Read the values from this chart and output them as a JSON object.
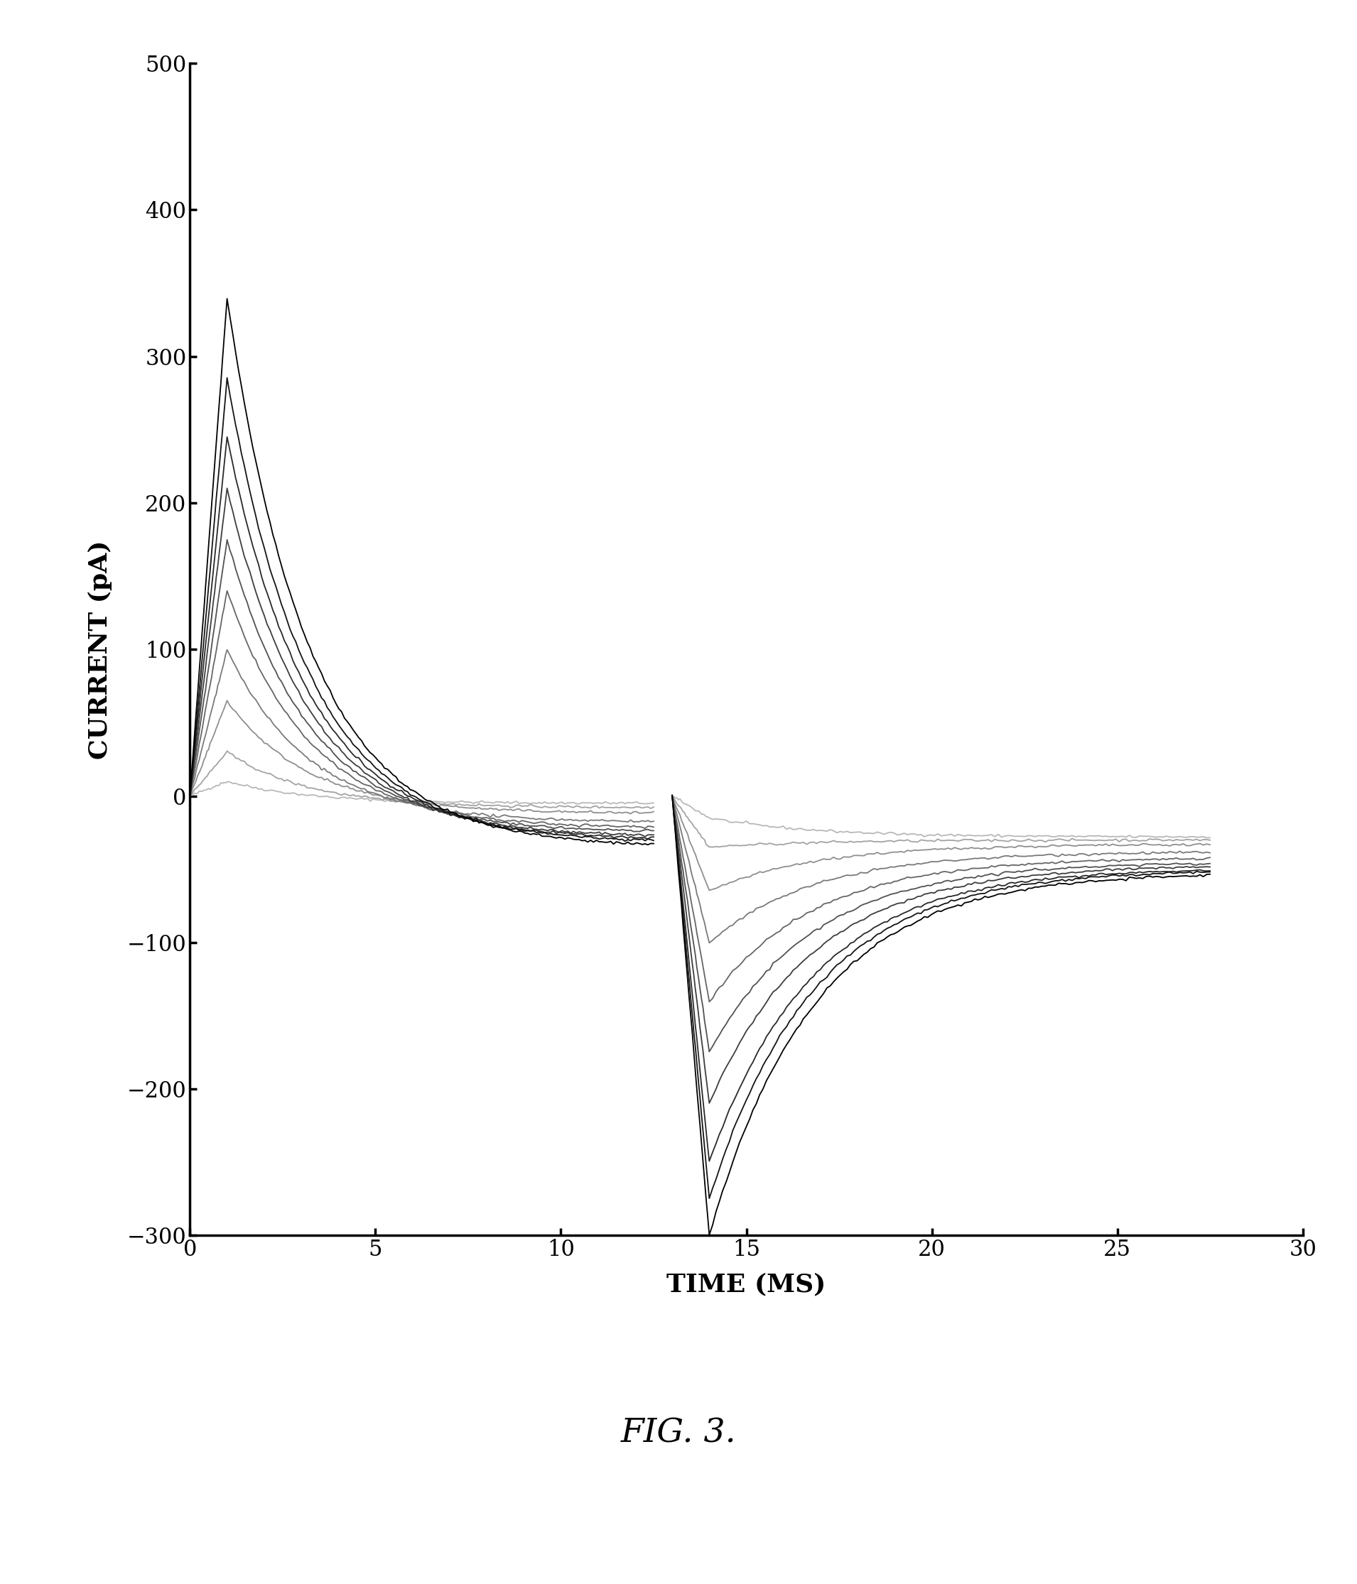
{
  "title": "FIG. 3.",
  "xlabel": "TIME (MS)",
  "ylabel": "CURRENT (pA)",
  "xlim": [
    0,
    30
  ],
  "ylim": [
    -300,
    500
  ],
  "xticks": [
    0,
    5,
    10,
    15,
    20,
    25,
    30
  ],
  "yticks": [
    -300,
    -200,
    -100,
    0,
    100,
    200,
    300,
    400,
    500
  ],
  "background_color": "#ffffff",
  "n_curves": 10,
  "peak_values_seg1": [
    10,
    30,
    65,
    100,
    140,
    175,
    210,
    245,
    285,
    340
  ],
  "tail_values_seg1": [
    -5,
    -8,
    -12,
    -18,
    -22,
    -25,
    -28,
    -30,
    -32,
    -35
  ],
  "peak_values_seg2": [
    -15,
    -35,
    -65,
    -100,
    -140,
    -175,
    -210,
    -250,
    -275,
    -300
  ],
  "tail_values_seg2": [
    -28,
    -30,
    -33,
    -38,
    -42,
    -45,
    -47,
    -49,
    -50,
    -52
  ],
  "gray_levels": [
    0.72,
    0.64,
    0.56,
    0.48,
    0.4,
    0.32,
    0.24,
    0.16,
    0.08,
    0.0
  ],
  "seg1_tau": 2.2,
  "seg2_tau": 2.8,
  "seg1_start": 0.0,
  "seg1_end": 12.5,
  "seg2_start": 13.0,
  "seg2_end": 27.5,
  "seg1_peak_t": 1.0,
  "seg2_peak_t": 14.0
}
